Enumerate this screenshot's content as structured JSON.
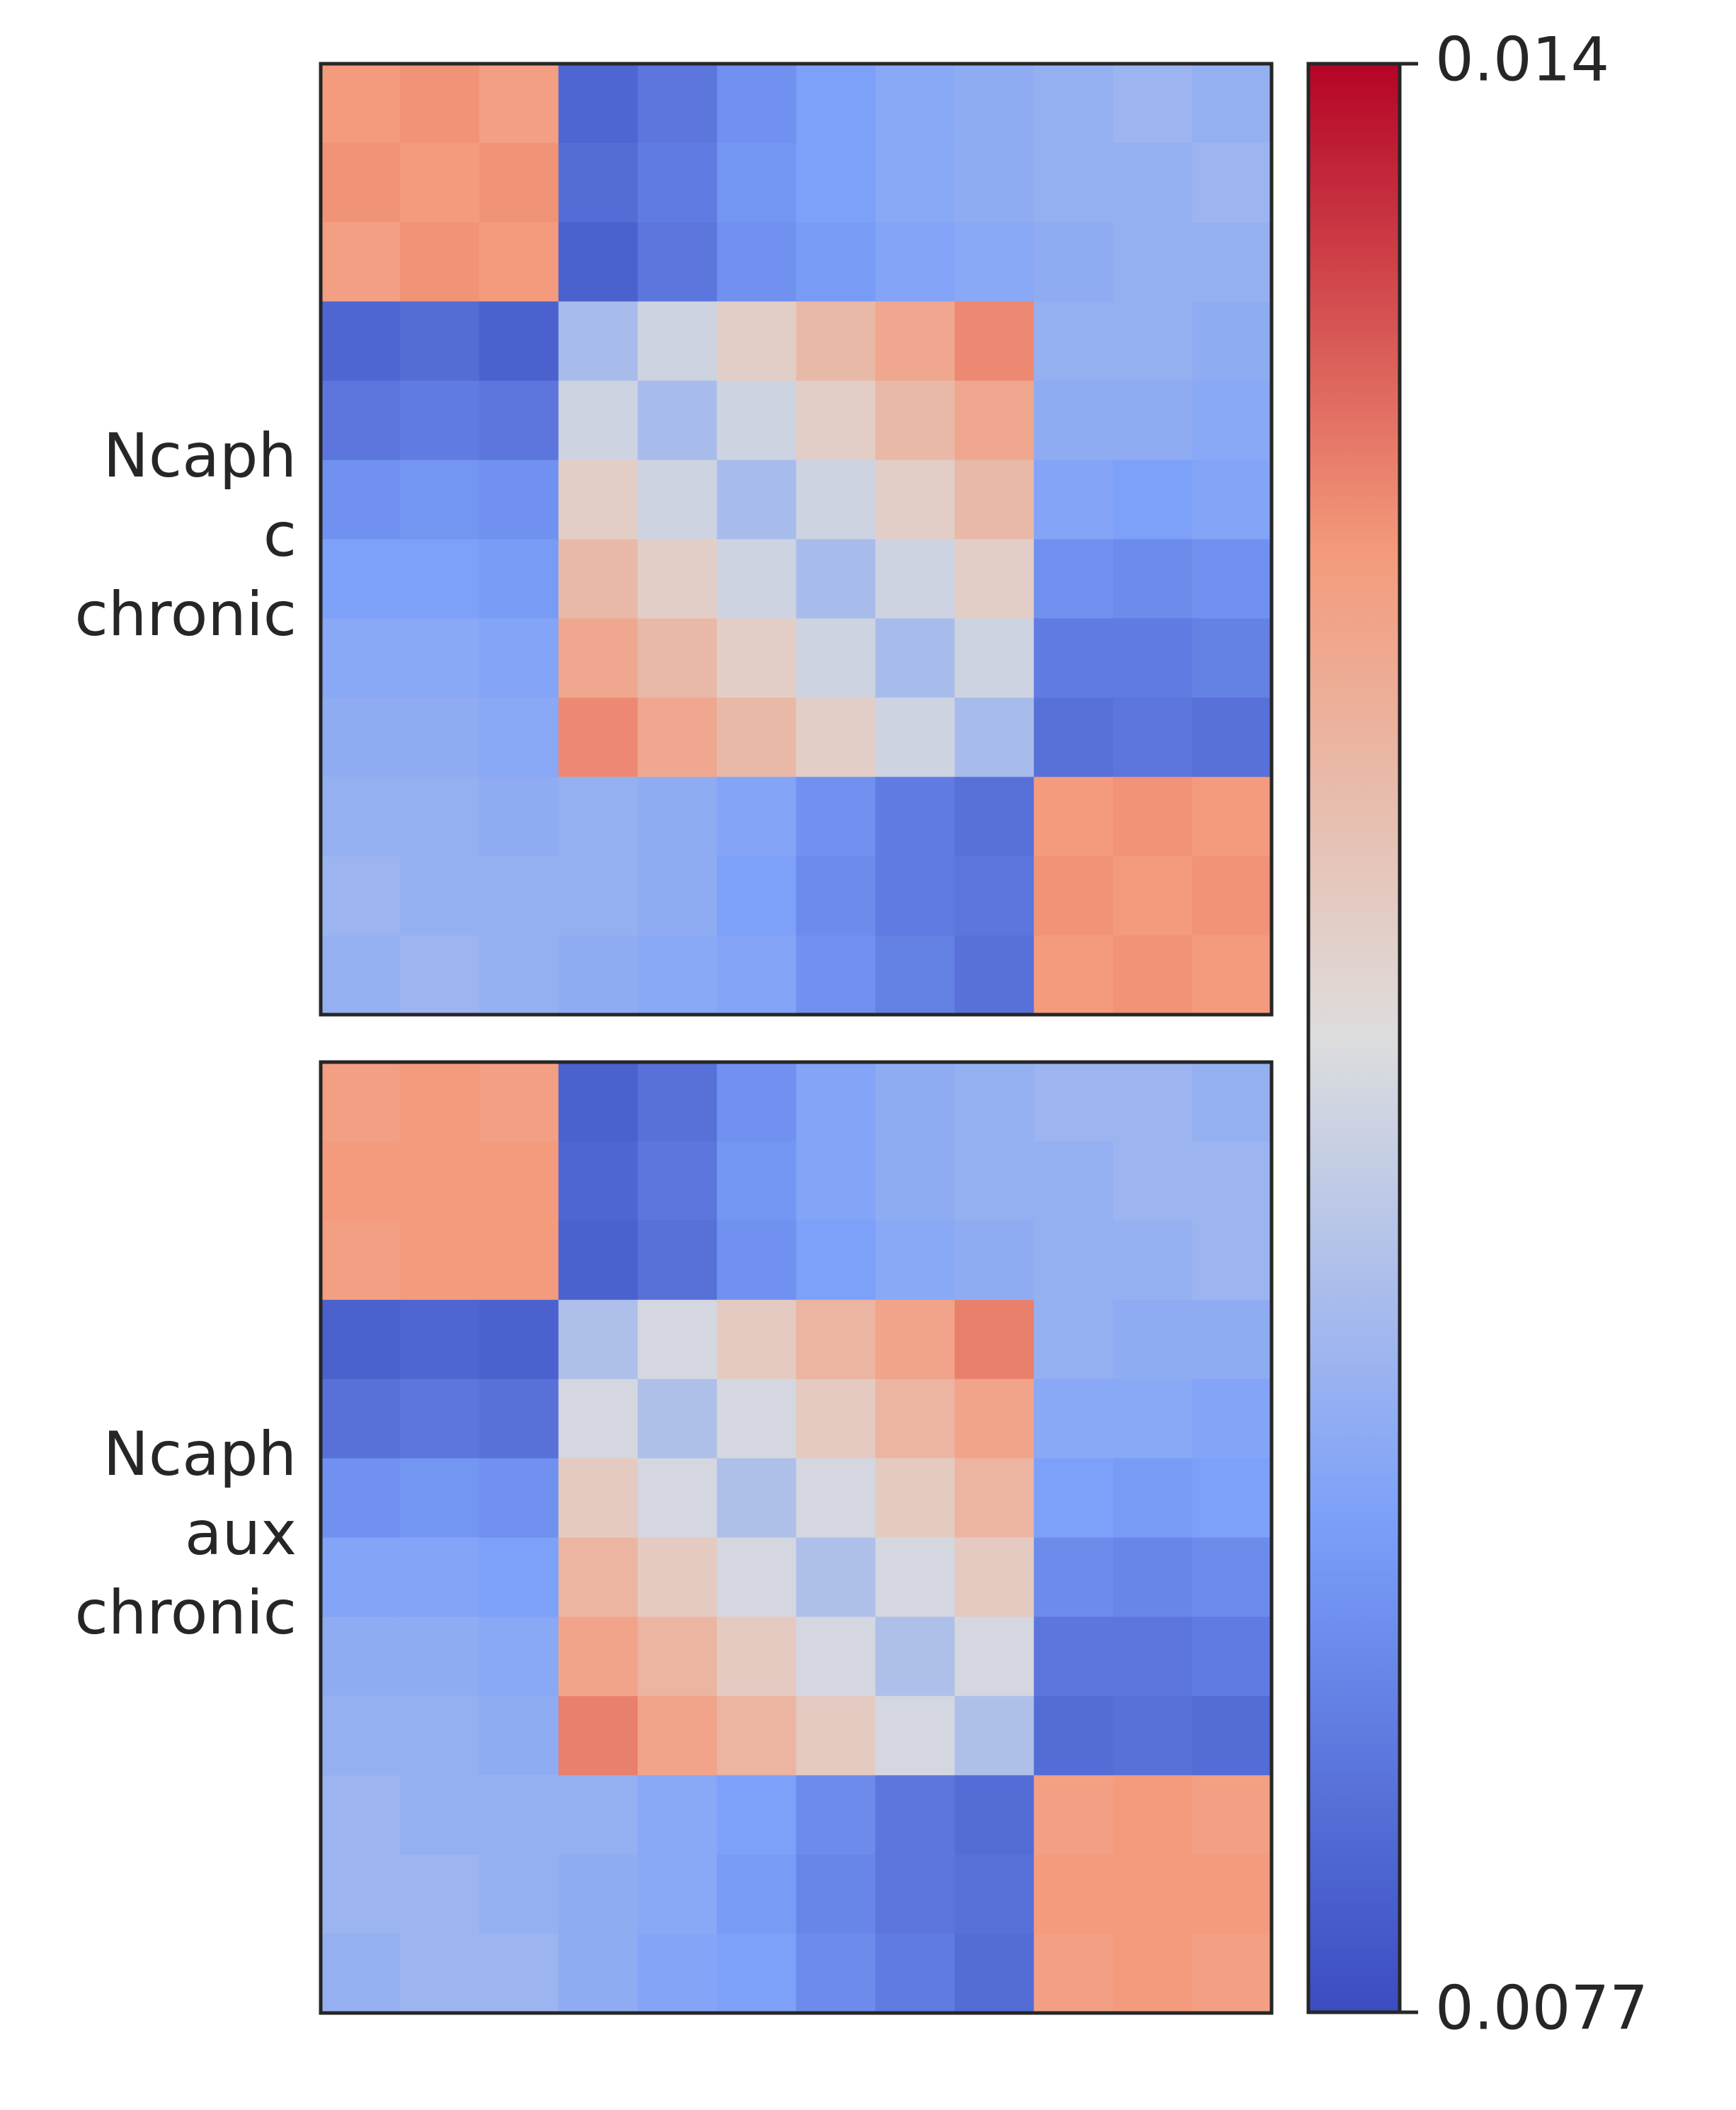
{
  "chart_data": {
    "type": "heatmap",
    "cmap": "coolwarm",
    "clim": [
      0.0077,
      0.014
    ],
    "cticks": [
      0.0077,
      0.014
    ],
    "panels": [
      {
        "label": [
          "Ncaph",
          "c",
          "chronic"
        ],
        "values": [
          [
            0.0124,
            0.0125,
            0.0123,
            0.0082,
            0.0085,
            0.009,
            0.0093,
            0.0095,
            0.0096,
            0.0097,
            0.0098,
            0.0097
          ],
          [
            0.0125,
            0.0124,
            0.0125,
            0.0083,
            0.0086,
            0.0091,
            0.0093,
            0.0095,
            0.0096,
            0.0097,
            0.0097,
            0.0098
          ],
          [
            0.0123,
            0.0125,
            0.0124,
            0.0081,
            0.0085,
            0.009,
            0.0092,
            0.0094,
            0.0095,
            0.0096,
            0.0097,
            0.0097
          ],
          [
            0.0082,
            0.0083,
            0.0081,
            0.01,
            0.0106,
            0.0112,
            0.0117,
            0.0121,
            0.0126,
            0.0097,
            0.0097,
            0.0096
          ],
          [
            0.0085,
            0.0086,
            0.0085,
            0.0106,
            0.01,
            0.0106,
            0.0112,
            0.0117,
            0.0121,
            0.0096,
            0.0096,
            0.0095
          ],
          [
            0.009,
            0.0091,
            0.009,
            0.0112,
            0.0106,
            0.01,
            0.0106,
            0.0112,
            0.0117,
            0.0094,
            0.0093,
            0.0094
          ],
          [
            0.0093,
            0.0093,
            0.0092,
            0.0117,
            0.0112,
            0.0106,
            0.01,
            0.0106,
            0.0112,
            0.009,
            0.0089,
            0.009
          ],
          [
            0.0095,
            0.0095,
            0.0094,
            0.0121,
            0.0117,
            0.0112,
            0.0106,
            0.01,
            0.0106,
            0.0086,
            0.0086,
            0.0087
          ],
          [
            0.0096,
            0.0096,
            0.0095,
            0.0126,
            0.0121,
            0.0117,
            0.0112,
            0.0106,
            0.01,
            0.0084,
            0.0085,
            0.0084
          ],
          [
            0.0097,
            0.0097,
            0.0096,
            0.0097,
            0.0096,
            0.0094,
            0.009,
            0.0086,
            0.0084,
            0.0124,
            0.0125,
            0.0124
          ],
          [
            0.0098,
            0.0097,
            0.0097,
            0.0097,
            0.0096,
            0.0093,
            0.0089,
            0.0086,
            0.0085,
            0.0125,
            0.0124,
            0.0125
          ],
          [
            0.0097,
            0.0098,
            0.0097,
            0.0096,
            0.0095,
            0.0094,
            0.009,
            0.0087,
            0.0084,
            0.0124,
            0.0125,
            0.0124
          ]
        ]
      },
      {
        "label": [
          "Ncaph",
          "aux",
          "chronic"
        ],
        "values": [
          [
            0.0123,
            0.0124,
            0.0123,
            0.0081,
            0.0084,
            0.009,
            0.0094,
            0.0096,
            0.0097,
            0.0098,
            0.0098,
            0.0097
          ],
          [
            0.0124,
            0.0124,
            0.0124,
            0.0082,
            0.0085,
            0.0091,
            0.0094,
            0.0096,
            0.0097,
            0.0097,
            0.0098,
            0.0098
          ],
          [
            0.0123,
            0.0124,
            0.0124,
            0.0081,
            0.0084,
            0.009,
            0.0093,
            0.0095,
            0.0096,
            0.0097,
            0.0097,
            0.0098
          ],
          [
            0.0081,
            0.0082,
            0.0081,
            0.0101,
            0.0107,
            0.0113,
            0.0118,
            0.0122,
            0.0127,
            0.0097,
            0.0096,
            0.0096
          ],
          [
            0.0084,
            0.0085,
            0.0084,
            0.0107,
            0.0101,
            0.0107,
            0.0113,
            0.0118,
            0.0122,
            0.0095,
            0.0095,
            0.0094
          ],
          [
            0.009,
            0.0091,
            0.009,
            0.0113,
            0.0107,
            0.0101,
            0.0107,
            0.0113,
            0.0118,
            0.0093,
            0.0092,
            0.0093
          ],
          [
            0.0094,
            0.0094,
            0.0093,
            0.0118,
            0.0113,
            0.0107,
            0.0101,
            0.0107,
            0.0113,
            0.0089,
            0.0088,
            0.0089
          ],
          [
            0.0096,
            0.0096,
            0.0095,
            0.0122,
            0.0118,
            0.0113,
            0.0107,
            0.0101,
            0.0107,
            0.0085,
            0.0085,
            0.0086
          ],
          [
            0.0097,
            0.0097,
            0.0096,
            0.0127,
            0.0122,
            0.0118,
            0.0113,
            0.0107,
            0.0101,
            0.0083,
            0.0084,
            0.0083
          ],
          [
            0.0098,
            0.0097,
            0.0097,
            0.0097,
            0.0095,
            0.0093,
            0.0089,
            0.0085,
            0.0083,
            0.0123,
            0.0124,
            0.0123
          ],
          [
            0.0098,
            0.0098,
            0.0097,
            0.0096,
            0.0095,
            0.0092,
            0.0088,
            0.0085,
            0.0084,
            0.0124,
            0.0124,
            0.0124
          ],
          [
            0.0097,
            0.0098,
            0.0098,
            0.0096,
            0.0094,
            0.0093,
            0.0089,
            0.0086,
            0.0083,
            0.0123,
            0.0124,
            0.0123
          ]
        ]
      }
    ]
  }
}
